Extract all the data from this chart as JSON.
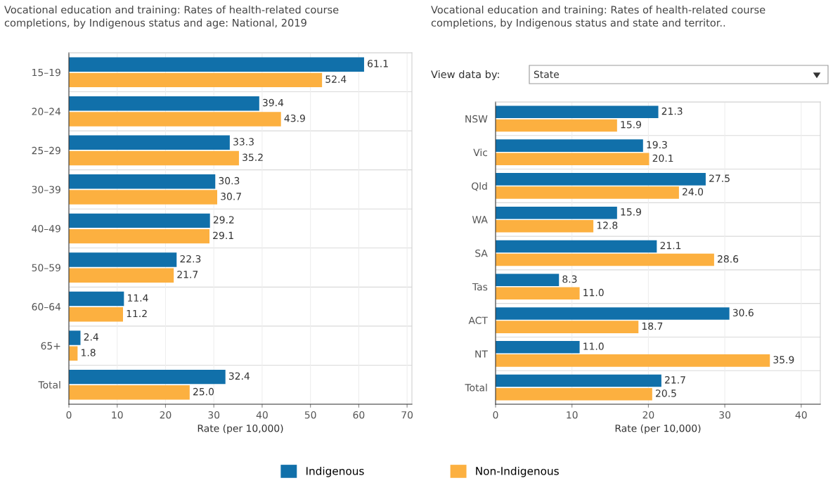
{
  "chart_data": [
    {
      "type": "bar",
      "orientation": "horizontal",
      "title": "Vocational education and training: Rates of health-related course completions, by Indigenous status and age: National, 2019",
      "xlabel": "Rate (per 10,000)",
      "categories": [
        "15–19",
        "20–24",
        "25–29",
        "30–39",
        "40–49",
        "50–59",
        "60–64",
        "65+",
        "Total"
      ],
      "series": [
        {
          "name": "Indigenous",
          "color": "#1170aa",
          "values": [
            61.1,
            39.4,
            33.3,
            30.3,
            29.2,
            22.3,
            11.4,
            2.4,
            32.4
          ],
          "value_labels": [
            "61.1",
            "39.4",
            "33.3",
            "30.3",
            "29.2",
            "22.3",
            "11.4",
            "2.4",
            "32.4"
          ]
        },
        {
          "name": "Non-Indigenous",
          "color": "#fcb040",
          "values": [
            52.4,
            43.9,
            35.2,
            30.7,
            29.1,
            21.7,
            11.2,
            1.8,
            25.0
          ],
          "value_labels": [
            "52.4",
            "43.9",
            "35.2",
            "30.7",
            "29.1",
            "21.7",
            "11.2",
            "1.8",
            "25.0"
          ]
        }
      ],
      "xlim": [
        0,
        71
      ],
      "xticks": [
        0,
        10,
        20,
        30,
        40,
        50,
        60,
        70
      ],
      "grid": "x",
      "legend": "bottom"
    },
    {
      "type": "bar",
      "orientation": "horizontal",
      "title": "Vocational education and training: Rates of health-related course completions, by Indigenous status and state and territor..",
      "xlabel": "Rate (per 10,000)",
      "annotations": [
        "View data by:",
        "State"
      ],
      "categories": [
        "NSW",
        "Vic",
        "Qld",
        "WA",
        "SA",
        "Tas",
        "ACT",
        "NT",
        "Total"
      ],
      "series": [
        {
          "name": "Indigenous",
          "color": "#1170aa",
          "values": [
            21.3,
            19.3,
            27.5,
            15.9,
            21.1,
            8.3,
            30.6,
            11.0,
            21.7
          ],
          "value_labels": [
            "21.3",
            "19.3",
            "27.5",
            "15.9",
            "21.1",
            "8.3",
            "30.6",
            "11.0",
            "21.7"
          ]
        },
        {
          "name": "Non-Indigenous",
          "color": "#fcb040",
          "values": [
            15.9,
            20.1,
            24.0,
            12.8,
            28.6,
            11.0,
            18.7,
            35.9,
            20.5
          ],
          "value_labels": [
            "15.9",
            "20.1",
            "24.0",
            "12.8",
            "28.6",
            "11.0",
            "18.7",
            "35.9",
            "20.5"
          ]
        }
      ],
      "xlim": [
        0,
        42.5
      ],
      "xticks": [
        0,
        10,
        20,
        30,
        40
      ],
      "grid": "x",
      "legend": "bottom"
    }
  ]
}
